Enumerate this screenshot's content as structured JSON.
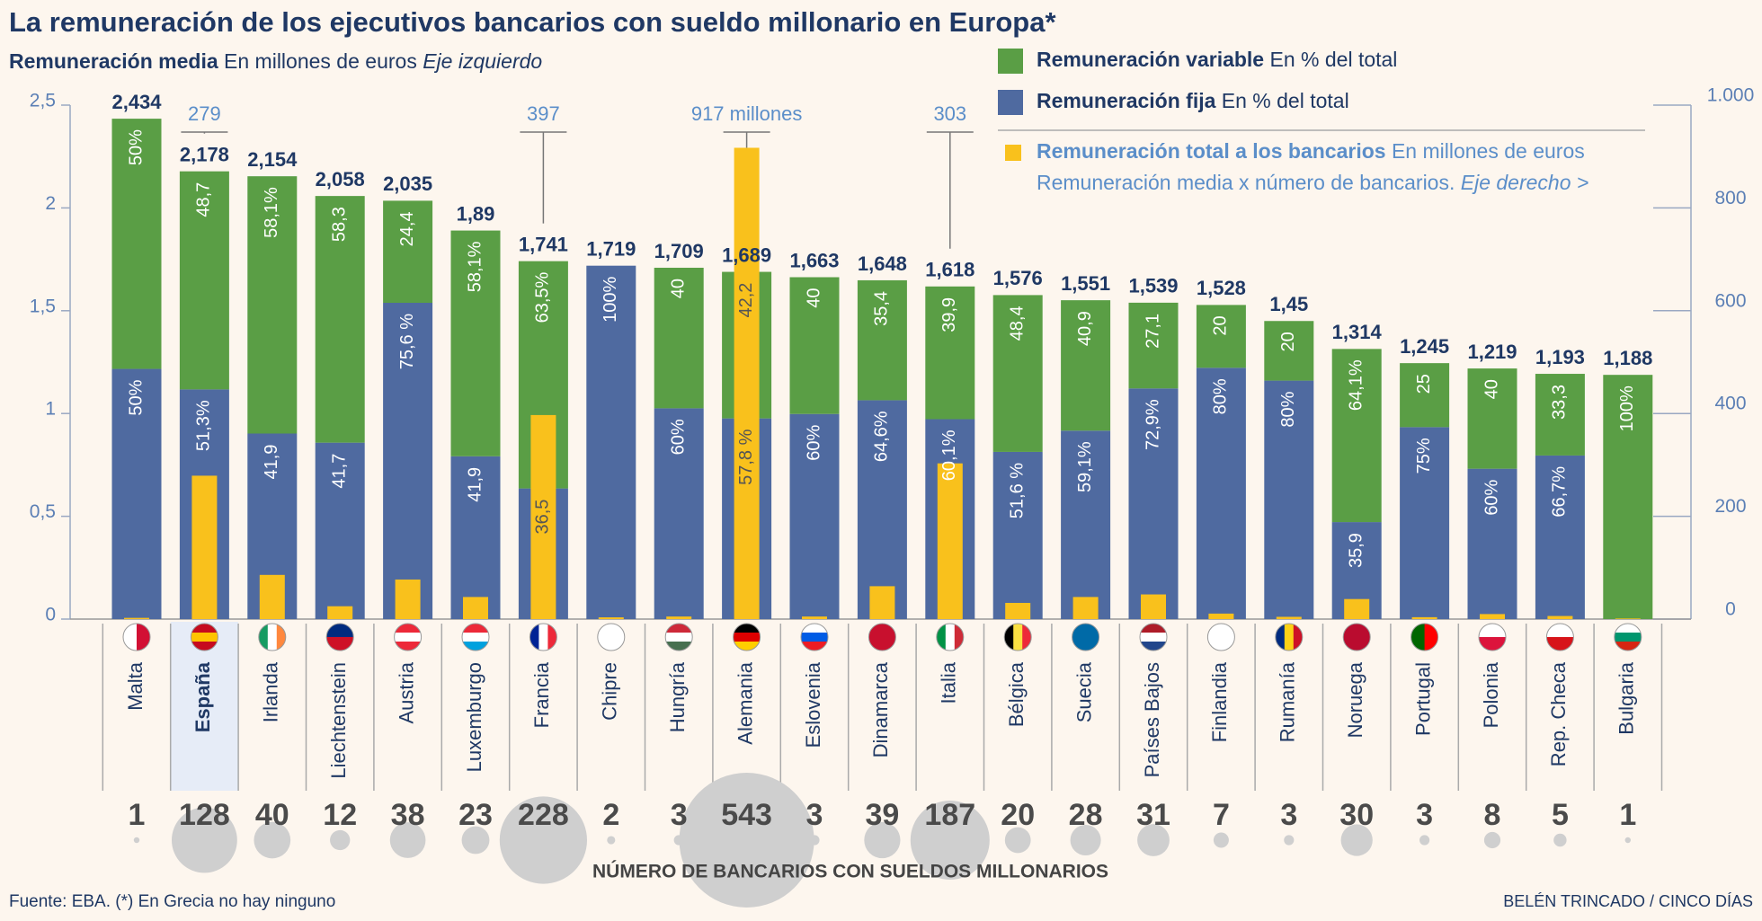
{
  "chart_data": {
    "type": "bar",
    "title": "La remuneración de los ejecutivos bancarios con sueldo millonario en Europa*",
    "subtitle": {
      "bold": "Remuneración media",
      "text": "En millones de euros",
      "italic": "Eje izquierdo"
    },
    "categories": [
      "Malta",
      "España",
      "Irlanda",
      "Liechtenstein",
      "Austria",
      "Luxemburgo",
      "Francia",
      "Chipre",
      "Hungría",
      "Alemania",
      "Eslovenia",
      "Dinamarca",
      "Italia",
      "Bélgica",
      "Suecia",
      "Países Bajos",
      "Finlandia",
      "Rumanía",
      "Noruega",
      "Portugal",
      "Polonia",
      "Rep. Checa",
      "Bulgaria"
    ],
    "totals": {
      "values": [
        2.434,
        2.178,
        2.154,
        2.058,
        2.035,
        1.89,
        1.741,
        1.719,
        1.709,
        1.689,
        1.663,
        1.648,
        1.618,
        1.576,
        1.551,
        1.539,
        1.528,
        1.45,
        1.314,
        1.245,
        1.219,
        1.193,
        1.188
      ],
      "value_labels": [
        "2,434",
        "2,178",
        "2,154",
        "2,058",
        "2,035",
        "1,89",
        "1,741",
        "1,719",
        "1,709",
        "1,689",
        "1,663",
        "1,648",
        "1,618",
        "1,576",
        "1,551",
        "1,539",
        "1,528",
        "1,45",
        "1,314",
        "1,245",
        "1,219",
        "1,193",
        "1,188"
      ]
    },
    "series": [
      {
        "name": "Remuneración fija",
        "note": "En % del total",
        "color": "#4f6aa0",
        "values": [
          50,
          51.3,
          41.9,
          41.7,
          75.6,
          41.9,
          36.5,
          100,
          60,
          57.8,
          60,
          64.6,
          60.1,
          51.6,
          59.1,
          72.9,
          80,
          80,
          35.9,
          75,
          60,
          66.7,
          0
        ],
        "value_labels": [
          "50%",
          "51,3%",
          "41,9",
          "41,7",
          "75,6 %",
          "41,9",
          "36,5",
          "100%",
          "60%",
          "57,8 %",
          "60%",
          "64,6%",
          "60,1%",
          "51,6 %",
          "59,1%",
          "72,9%",
          "80%",
          "80%",
          "35,9",
          "75%",
          "60%",
          "66,7%",
          null
        ]
      },
      {
        "name": "Remuneración variable",
        "note": "En % del total",
        "color": "#5a9e45",
        "values": [
          50,
          48.7,
          58.1,
          58.3,
          24.4,
          58.1,
          63.5,
          0,
          40,
          42.2,
          40,
          35.4,
          39.9,
          48.4,
          40.9,
          27.1,
          20,
          20,
          64.1,
          25,
          40,
          33.3,
          100
        ],
        "value_labels": [
          "50%",
          "48,7",
          "58,1%",
          "58,3",
          "24,4",
          "58,1%",
          "63,5%",
          null,
          "40",
          "42,2",
          "40",
          "35,4",
          "39,9",
          "48,4",
          "40,9",
          "27,1",
          "20",
          "20",
          "64,1%",
          "25",
          "40",
          "33,3",
          "100%"
        ]
      },
      {
        "name": "Remuneración total a los bancarios",
        "note": "En millones de euros",
        "note2": "Remuneración media x número de bancarios.",
        "note3": "Eje derecho >",
        "color": "#f9c11c",
        "axis": "y2",
        "values": [
          2.4,
          279,
          86,
          25,
          77,
          43,
          397,
          3.4,
          5,
          917,
          5,
          64,
          303,
          31.5,
          43,
          48,
          10.7,
          4.4,
          39,
          3.7,
          9.8,
          6,
          1.2
        ],
        "value_labels": [
          null,
          "279",
          null,
          null,
          null,
          null,
          "397",
          null,
          null,
          "917 millones",
          null,
          null,
          "303",
          null,
          null,
          null,
          null,
          null,
          null,
          null,
          null,
          null,
          null
        ]
      }
    ],
    "bankers": {
      "title": "NÚMERO DE BANCARIOS CON SUELDOS MILLONARIOS",
      "values": [
        1,
        128,
        40,
        12,
        38,
        23,
        228,
        2,
        3,
        543,
        3,
        39,
        187,
        20,
        28,
        31,
        7,
        3,
        30,
        3,
        8,
        5,
        1
      ]
    },
    "ylim": [
      0,
      2.5
    ],
    "yticks": [
      0,
      {
        "value": 0.5,
        "label": "0,5"
      },
      1,
      {
        "value": 1.5,
        "label": "1,5"
      },
      2,
      {
        "value": 2.5,
        "label": "2,5"
      }
    ],
    "y2lim": [
      0,
      1000
    ],
    "y2ticks": [
      0,
      200,
      400,
      600,
      800,
      {
        "value": 1000,
        "label": "1.000"
      }
    ],
    "source": "Fuente: EBA. (*) En Grecia no hay ninguno",
    "credit": "BELÉN TRINCADO / CINCO DÍAS"
  }
}
